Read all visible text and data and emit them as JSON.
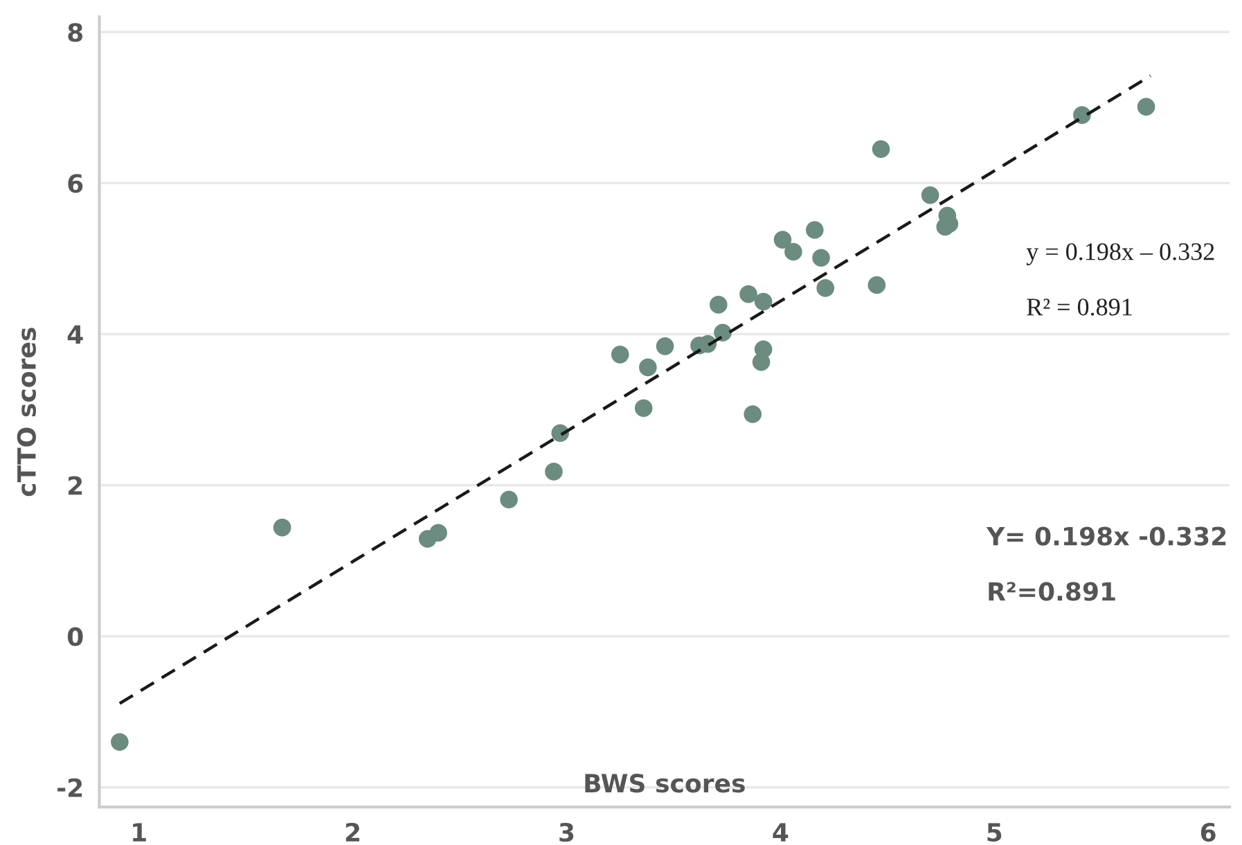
{
  "chart_data": {
    "type": "scatter",
    "xlabel": "BWS scores",
    "ylabel": "cTTO scores",
    "xlim": [
      0.815,
      6.1
    ],
    "ylim": [
      -2.26,
      8.2
    ],
    "xticks": [
      1,
      2,
      3,
      4,
      5,
      6
    ],
    "yticks": [
      -2,
      0,
      2,
      4,
      6,
      8
    ],
    "grid": "y",
    "annotations": [
      "y = 0.198x – 0.332",
      "R² = 0.891",
      "Y= 0.198x -0.332",
      "R²=0.891"
    ],
    "series": [
      {
        "marker": "circle",
        "color": "#6b8c7e",
        "x": [
          0.91,
          1.67,
          2.35,
          2.4,
          2.73,
          2.94,
          2.97,
          3.36,
          3.25,
          3.38,
          3.46,
          3.62,
          3.66,
          3.73,
          3.71,
          3.87,
          3.91,
          3.92,
          3.85,
          3.92,
          4.01,
          4.06,
          4.16,
          4.19,
          4.21,
          4.45,
          4.47,
          4.7,
          4.78,
          4.77,
          4.79,
          5.41,
          5.71
        ],
        "values": [
          -1.4,
          1.44,
          1.29,
          1.37,
          1.81,
          2.18,
          2.69,
          3.02,
          3.73,
          3.56,
          3.84,
          3.85,
          3.87,
          4.02,
          4.39,
          2.94,
          3.63,
          3.8,
          4.53,
          4.43,
          5.25,
          5.09,
          5.38,
          5.01,
          4.61,
          4.65,
          6.45,
          5.84,
          5.57,
          5.42,
          5.46,
          6.9,
          7.01
        ]
      },
      {
        "type": "line",
        "marker": "none",
        "color": "#1a1a1a",
        "line_style": "dashed",
        "x": [
          0.91,
          5.73
        ],
        "values": [
          -0.89,
          7.42
        ]
      }
    ]
  }
}
